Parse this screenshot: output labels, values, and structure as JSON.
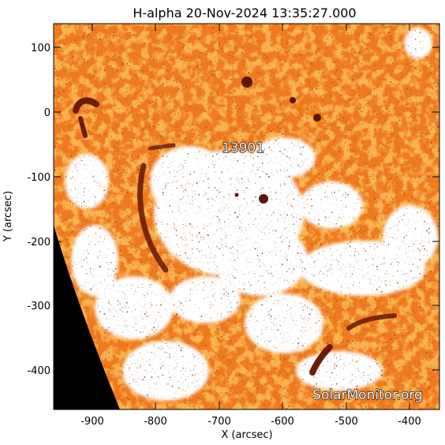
{
  "title": "H-alpha 20-Nov-2024 13:35:27.000",
  "x_axis": {
    "label": "X (arcsec)",
    "tick_labels": [
      "-900",
      "-800",
      "-700",
      "-600",
      "-500",
      "-400"
    ],
    "range": [
      -960,
      -355
    ]
  },
  "y_axis": {
    "label": "Y (arcsec)",
    "tick_labels": [
      "100",
      "0",
      "-100",
      "-200",
      "-300",
      "-400"
    ],
    "range": [
      -460,
      135
    ]
  },
  "active_region_label": "13901",
  "watermark": "SolarMonitor.org",
  "colors": {
    "background": "#ffffff",
    "disk_orange": "#f07a1e",
    "disk_light": "#f9b76a",
    "plage_white": "#ffffff",
    "filament_dark": "#6b1d0a",
    "space_black": "#000000"
  }
}
